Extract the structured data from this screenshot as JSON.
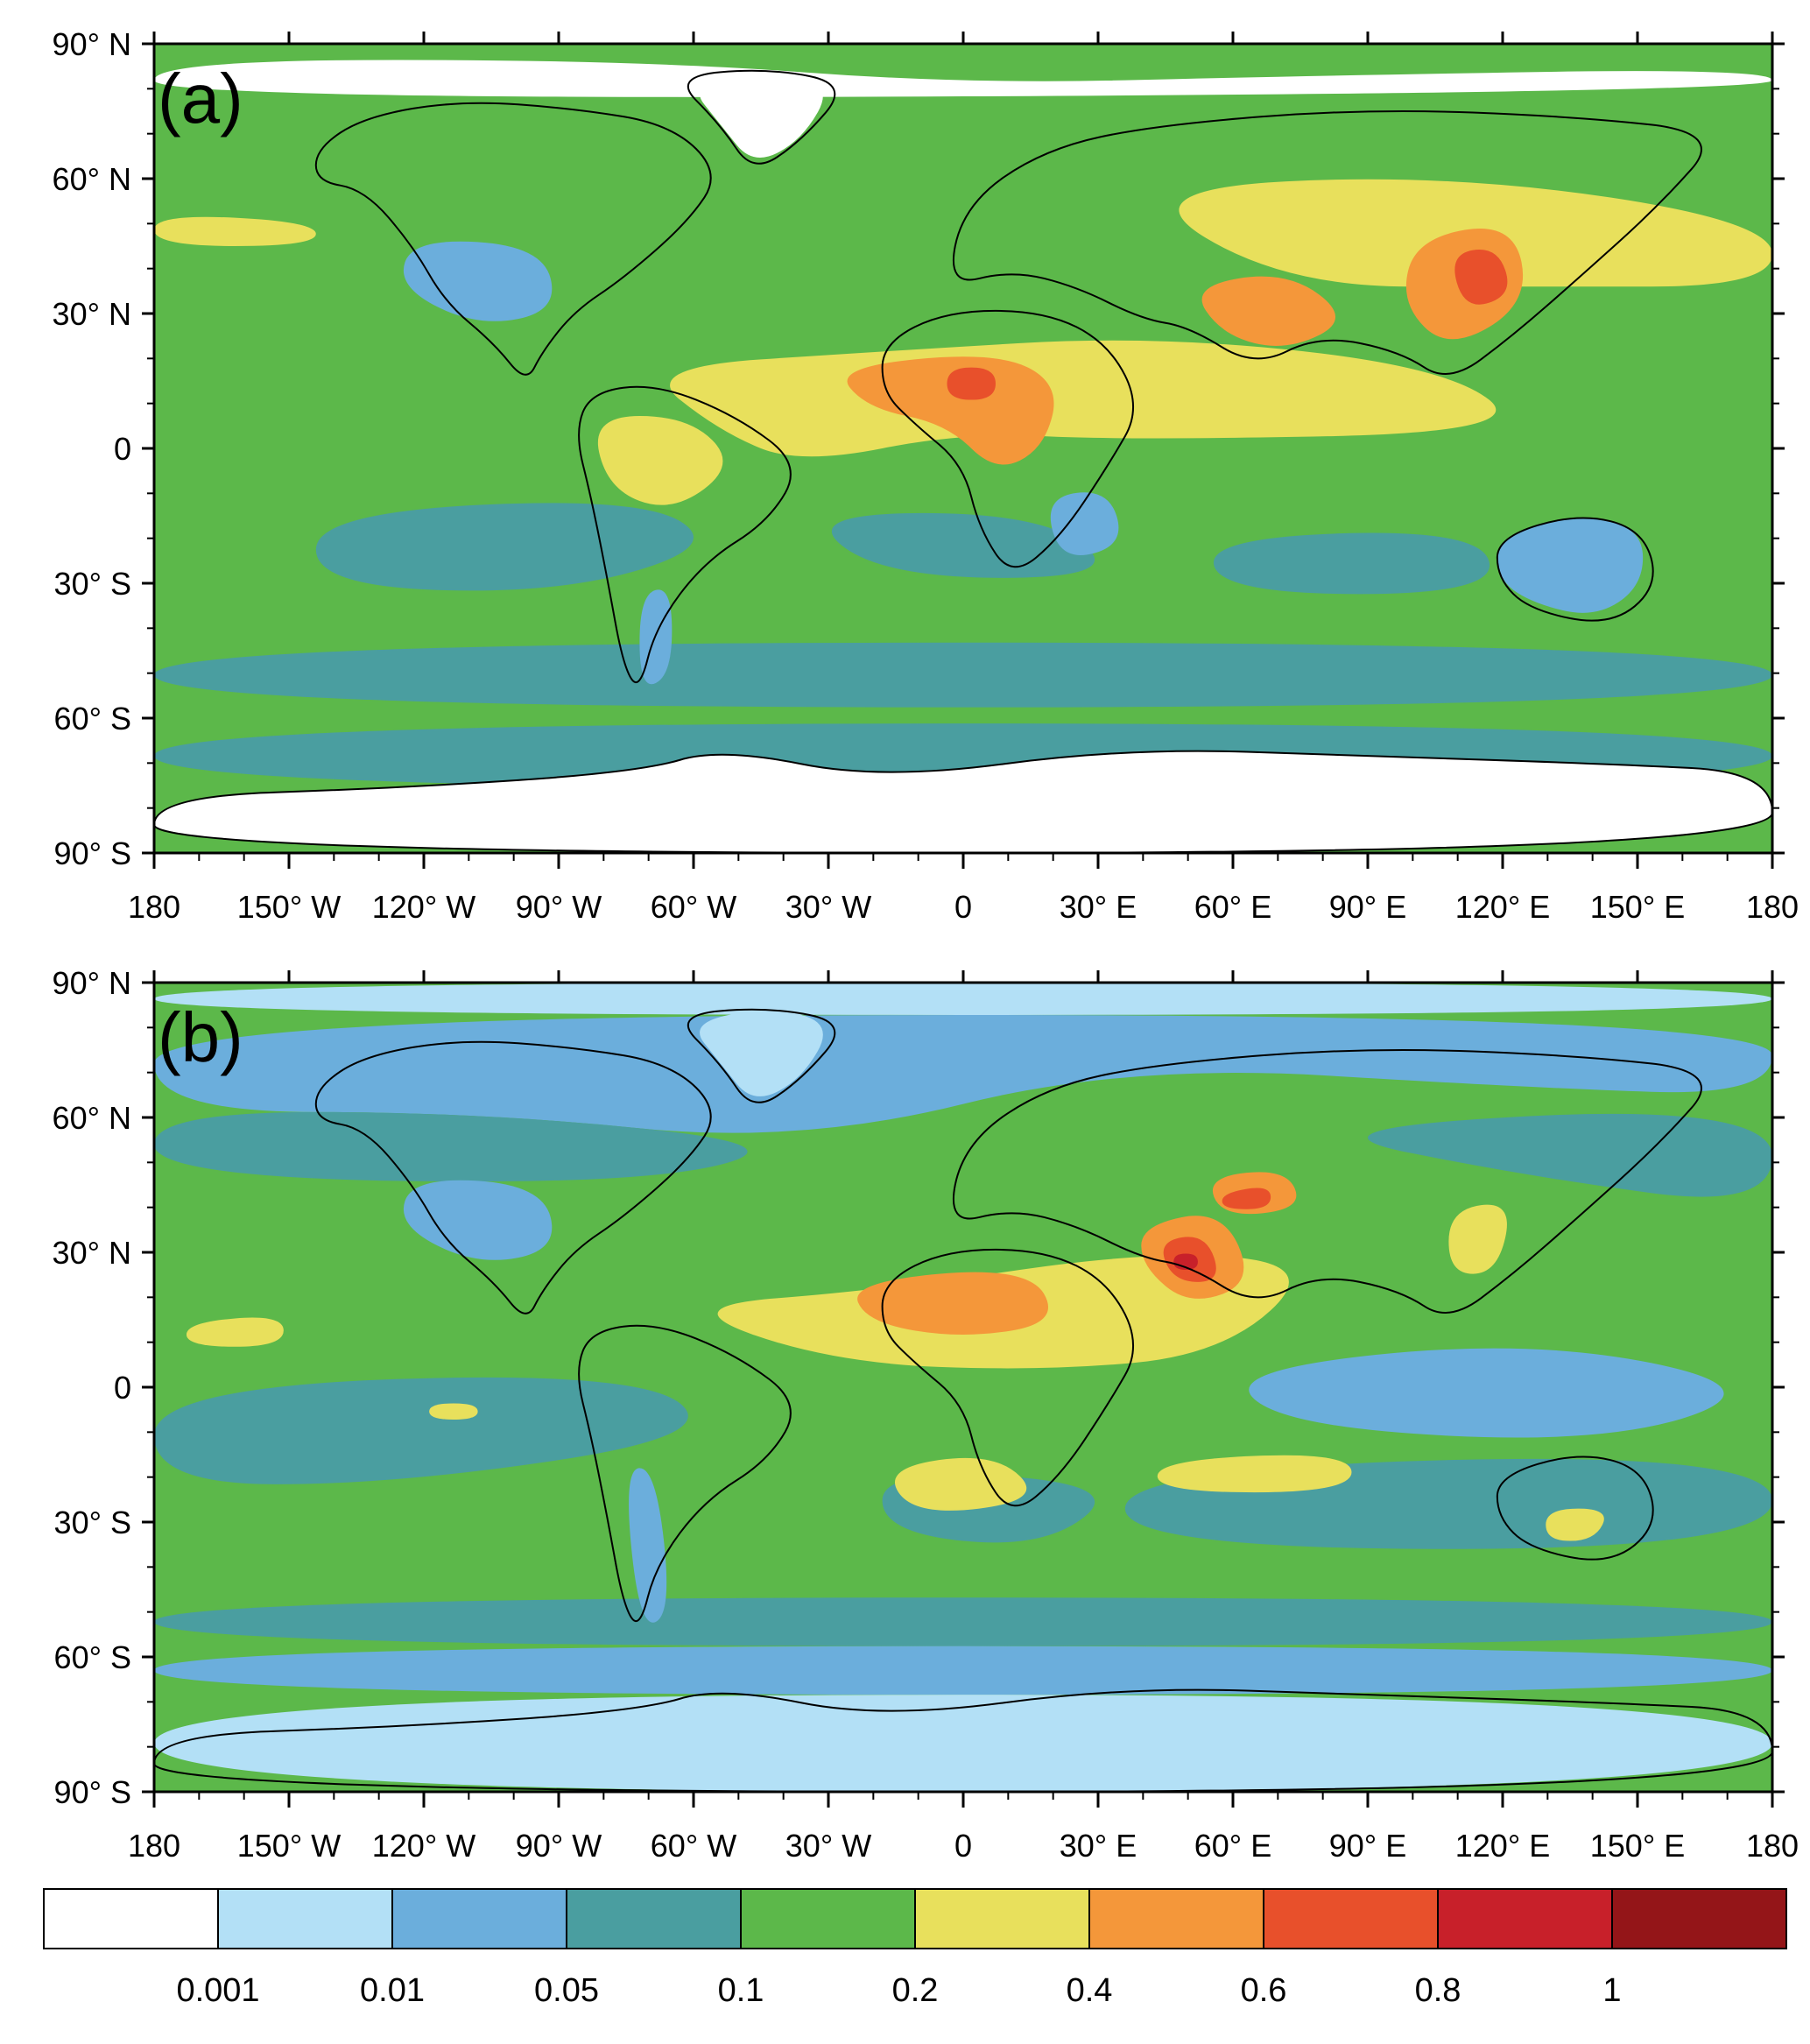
{
  "panels": [
    {
      "id": "a",
      "label": "(a)",
      "lat_labels": [
        "90° N",
        "60° N",
        "30° N",
        "0",
        "30° S",
        "60° S",
        "90° S"
      ],
      "lon_labels": [
        "180",
        "150° W",
        "120° W",
        "90° W",
        "60° W",
        "30° W",
        "0",
        "30° E",
        "60° E",
        "90° E",
        "120° E",
        "150° E",
        "180"
      ]
    },
    {
      "id": "b",
      "label": "(b)",
      "lat_labels": [
        "90° N",
        "60° N",
        "30° N",
        "0",
        "30° S",
        "60° S",
        "90° S"
      ],
      "lon_labels": [
        "180",
        "150° W",
        "120° W",
        "90° W",
        "60° W",
        "30° W",
        "0",
        "30° E",
        "60° E",
        "90° E",
        "120° E",
        "150° E",
        "180"
      ]
    }
  ],
  "colorbar": {
    "levels": [
      "0.001",
      "0.01",
      "0.05",
      "0.1",
      "0.2",
      "0.4",
      "0.6",
      "0.8",
      "1"
    ],
    "colors": [
      "#ffffff",
      "#b3e0f6",
      "#6baedc",
      "#4a9ea0",
      "#5cb84a",
      "#e8e05c",
      "#f4973a",
      "#e8502b",
      "#c8202a",
      "#941518"
    ]
  }
}
